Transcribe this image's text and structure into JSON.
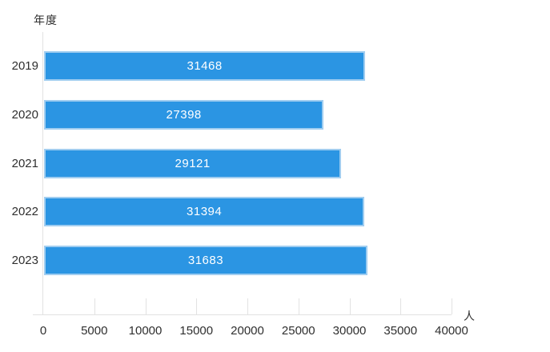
{
  "chart_data": {
    "type": "bar",
    "orientation": "horizontal",
    "y_axis_title": "年度",
    "x_axis_unit": "人",
    "categories": [
      "2019",
      "2020",
      "2021",
      "2022",
      "2023"
    ],
    "values": [
      31468,
      27398,
      29121,
      31394,
      31683
    ],
    "x_ticks": [
      0,
      5000,
      10000,
      15000,
      20000,
      25000,
      30000,
      35000,
      40000
    ],
    "xlim": [
      0,
      40000
    ],
    "grid": false,
    "legend": "none",
    "bar_color": "#2B95E3",
    "bar_border_color": "#A0CDF0",
    "value_label_color": "#FFFFFF",
    "axis_color": "#E2E2E2",
    "text_color": "#2F2F2F"
  }
}
